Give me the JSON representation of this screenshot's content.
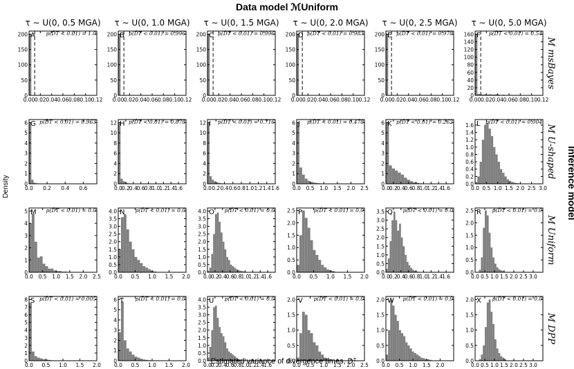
{
  "figure": {
    "title": "Data model ℳUniform",
    "x_label": "Estimated variance of divergence times, Dᵀ",
    "y_label": "Density",
    "right_label": "Inference model"
  },
  "columns": [
    "τ ∼ U(0, 0.5 MGA)",
    "τ ∼ U(0, 1.0 MGA)",
    "τ ∼ U(0, 1.5 MGA)",
    "τ ∼ U(0, 2.0 MGA)",
    "τ ∼ U(0, 2.5 MGA)",
    "τ ∼ U(0, 5.0 MGA)"
  ],
  "rows": [
    "M msBayes",
    "M U-shaped",
    "M Uniform",
    "M DPP"
  ],
  "chart_data": {
    "type": "bar",
    "bar_color": "#808080",
    "panels": [
      {
        "label": "A",
        "row": 0,
        "col": 0,
        "p": "p(D̂T < 0.01) = 1.0",
        "xlim": [
          0,
          0.12
        ],
        "ylim": [
          0,
          210
        ],
        "xticks": [
          0,
          0.02,
          0.04,
          0.06,
          0.08,
          0.1,
          0.12
        ],
        "yticks": [
          0,
          50,
          100,
          150,
          200
        ],
        "bin": 0.004,
        "values": [
          200
        ],
        "dashed_x": 0.01
      },
      {
        "label": "B",
        "row": 0,
        "col": 1,
        "p": "p(D̂T < 0.01) = 0.996",
        "xlim": [
          0,
          0.12
        ],
        "ylim": [
          0,
          210
        ],
        "xticks": [
          0,
          0.02,
          0.04,
          0.06,
          0.08,
          0.1,
          0.12
        ],
        "yticks": [
          0,
          50,
          100,
          150,
          200
        ],
        "bin": 0.004,
        "values": [
          200
        ],
        "dashed_x": 0.01
      },
      {
        "label": "C",
        "row": 0,
        "col": 2,
        "p": "p(D̂T < 0.01) = 0.996",
        "xlim": [
          0,
          0.12
        ],
        "ylim": [
          0,
          210
        ],
        "xticks": [
          0,
          0.02,
          0.04,
          0.06,
          0.08,
          0.1,
          0.12
        ],
        "yticks": [
          0,
          50,
          100,
          150,
          200
        ],
        "bin": 0.004,
        "values": [
          200
        ],
        "dashed_x": 0.01
      },
      {
        "label": "D",
        "row": 0,
        "col": 3,
        "p": "p(D̂T < 0.01) = 0.983",
        "xlim": [
          0,
          0.12
        ],
        "ylim": [
          0,
          210
        ],
        "xticks": [
          0,
          0.02,
          0.04,
          0.06,
          0.08,
          0.1,
          0.12
        ],
        "yticks": [
          0,
          50,
          100,
          150,
          200
        ],
        "bin": 0.004,
        "values": [
          200
        ],
        "dashed_x": 0.01
      },
      {
        "label": "E",
        "row": 0,
        "col": 4,
        "p": "p(D̂T < 0.01) = 0.978",
        "xlim": [
          0,
          0.12
        ],
        "ylim": [
          0,
          210
        ],
        "xticks": [
          0,
          0.02,
          0.04,
          0.06,
          0.08,
          0.1,
          0.12
        ],
        "yticks": [
          0,
          50,
          100,
          150,
          200
        ],
        "bin": 0.004,
        "values": [
          200
        ],
        "dashed_x": 0.01
      },
      {
        "label": "F",
        "row": 0,
        "col": 5,
        "p": "p(D̂T < 0.01) = 0.54",
        "xlim": [
          0,
          0.12
        ],
        "ylim": [
          0,
          168
        ],
        "xticks": [
          0,
          0.02,
          0.04,
          0.06,
          0.08,
          0.1,
          0.12
        ],
        "yticks": [
          0,
          20,
          40,
          60,
          80,
          100,
          120,
          140,
          160
        ],
        "bin": 0.004,
        "values": [
          160,
          4,
          3,
          2,
          3,
          2,
          3,
          2,
          2,
          3,
          2,
          1,
          2,
          1,
          1,
          1,
          1,
          1,
          0,
          1
        ],
        "dashed_x": 0.01
      },
      {
        "label": "G",
        "row": 1,
        "col": 0,
        "p": "p(D̂T < 0.01) = 0.963",
        "xlim": [
          0,
          0.75
        ],
        "ylim": [
          0,
          6.3
        ],
        "xticks": [
          0,
          0.2,
          0.4,
          0.6
        ],
        "yticks": [
          0,
          1,
          2,
          3,
          4,
          5,
          6
        ],
        "bin": 0.025,
        "values": [
          6.0,
          0.4,
          0.1,
          0.05
        ]
      },
      {
        "label": "H",
        "row": 1,
        "col": 1,
        "p": "p(D̂T < 0.01) = 0.878",
        "xlim": [
          0,
          1.8
        ],
        "ylim": [
          0,
          12.6
        ],
        "xticks": [
          0,
          0.2,
          0.4,
          0.6,
          0.8,
          1.0,
          1.2,
          1.4,
          1.6
        ],
        "yticks": [
          0,
          2,
          4,
          6,
          8,
          10,
          12
        ],
        "bin": 0.06,
        "values": [
          12.0,
          1.0,
          0.5,
          0.25,
          0.1,
          0.05
        ]
      },
      {
        "label": "I",
        "row": 1,
        "col": 2,
        "p": "p(D̂T < 0.01) = 0.716",
        "xlim": [
          0,
          1.6
        ],
        "ylim": [
          0,
          12.6
        ],
        "xticks": [
          0,
          0.2,
          0.4,
          0.6,
          0.8,
          1.0,
          1.2,
          1.4,
          1.6
        ],
        "yticks": [
          0,
          2,
          4,
          6,
          8,
          10,
          12
        ],
        "bin": 0.05,
        "values": [
          12.0,
          1.5,
          0.8,
          0.5,
          0.3,
          0.2,
          0.1,
          0.05
        ]
      },
      {
        "label": "J",
        "row": 1,
        "col": 3,
        "p": "p(D̂T < 0.01) = 0.478",
        "xlim": [
          0,
          2.5
        ],
        "ylim": [
          0,
          6.3
        ],
        "xticks": [
          0,
          0.5,
          1.0,
          1.5,
          2.0,
          2.5
        ],
        "yticks": [
          0,
          1,
          2,
          3,
          4,
          5,
          6
        ],
        "bin": 0.1,
        "values": [
          6.0,
          1.6,
          0.9,
          0.5,
          0.3,
          0.2,
          0.12,
          0.08,
          0.05,
          0.03
        ]
      },
      {
        "label": "K",
        "row": 1,
        "col": 4,
        "p": "p(D̂T < 0.01) = 0.262",
        "xlim": [
          0,
          1.8
        ],
        "ylim": [
          0,
          6.3
        ],
        "xticks": [
          0,
          0.2,
          0.4,
          0.6,
          0.8,
          1.0,
          1.2,
          1.4,
          1.6
        ],
        "yticks": [
          0,
          1,
          2,
          3,
          4,
          5,
          6
        ],
        "bin": 0.08,
        "values": [
          6.0,
          1.8,
          1.5,
          1.3,
          1.1,
          0.9,
          0.6,
          0.4,
          0.25,
          0.15,
          0.1,
          0.05
        ]
      },
      {
        "label": "L",
        "row": 1,
        "col": 5,
        "p": "p(D̂T < 0.01) = 0.004",
        "xlim": [
          0,
          3.0
        ],
        "ylim": [
          0,
          1.75
        ],
        "xticks": [
          0,
          0.5,
          1.0,
          1.5,
          2.0,
          2.5,
          3.0
        ],
        "yticks": [
          0,
          0.2,
          0.4,
          0.6,
          0.8,
          1.0,
          1.2,
          1.4,
          1.6
        ],
        "bin": 0.1,
        "values": [
          0.05,
          0.2,
          0.6,
          1.2,
          1.6,
          1.65,
          1.5,
          1.3,
          1.0,
          0.8,
          0.6,
          0.4,
          0.3,
          0.2,
          0.12,
          0.08,
          0.05,
          0.03,
          0.02,
          0.01
        ]
      },
      {
        "label": "M",
        "row": 2,
        "col": 0,
        "p": "p(D̂T < 0.01) = 0.0",
        "xlim": [
          0,
          2.5
        ],
        "ylim": [
          0,
          5.25
        ],
        "xticks": [
          0,
          0.5,
          1.0,
          1.5,
          2.0,
          2.5
        ],
        "yticks": [
          0,
          1,
          2,
          3,
          4,
          5
        ],
        "bin": 0.1,
        "values": [
          4.0,
          4.8,
          2.5,
          1.2,
          1.3,
          0.7,
          0.5,
          0.3,
          0.3,
          0.15,
          0.1,
          0.1,
          0.05,
          0.05
        ]
      },
      {
        "label": "N",
        "row": 2,
        "col": 1,
        "p": "p(D̂T < 0.01) = 0.0",
        "xlim": [
          0,
          2.0
        ],
        "ylim": [
          0,
          4.2
        ],
        "xticks": [
          0,
          0.5,
          1.0,
          1.5,
          2.0
        ],
        "yticks": [
          0,
          0.5,
          1.0,
          1.5,
          2.0,
          2.5,
          3.0,
          3.5,
          4.0
        ],
        "bin": 0.08,
        "values": [
          1.5,
          3.6,
          3.8,
          2.8,
          2.0,
          1.5,
          1.0,
          0.8,
          0.6,
          0.4,
          0.3,
          0.2,
          0.1,
          0.05
        ]
      },
      {
        "label": "O",
        "row": 2,
        "col": 2,
        "p": "p(D̂T < 0.01) = 0.0",
        "xlim": [
          0,
          1.8
        ],
        "ylim": [
          0,
          4.2
        ],
        "xticks": [
          0,
          0.2,
          0.4,
          0.6,
          0.8,
          1.0,
          1.2,
          1.4,
          1.6
        ],
        "yticks": [
          0,
          0.5,
          1.0,
          1.5,
          2.0,
          2.5,
          3.0,
          3.5,
          4.0
        ],
        "bin": 0.05,
        "values": [
          0.1,
          0.3,
          1.2,
          2.5,
          3.8,
          3.9,
          3.3,
          2.6,
          2.0,
          1.5,
          1.0,
          0.8,
          0.5,
          0.4,
          0.3,
          0.2,
          0.15,
          0.1,
          0.08,
          0.05
        ]
      },
      {
        "label": "P",
        "row": 2,
        "col": 3,
        "p": "p(D̂T < 0.01) = 0.0",
        "xlim": [
          0,
          2.0
        ],
        "ylim": [
          0,
          2.6
        ],
        "xticks": [
          0,
          0.5,
          1.0,
          1.5,
          2.0
        ],
        "yticks": [
          0,
          0.5,
          1.0,
          1.5,
          2.0,
          2.5
        ],
        "bin": 0.08,
        "values": [
          0.3,
          1.5,
          2.5,
          2.2,
          1.8,
          1.3,
          0.9,
          0.7,
          0.5,
          0.3,
          0.2,
          0.12,
          0.08,
          0.05
        ]
      },
      {
        "label": "Q",
        "row": 2,
        "col": 4,
        "p": "p(D̂T < 0.01) = 0.0",
        "xlim": [
          0,
          1.8
        ],
        "ylim": [
          0,
          3.7
        ],
        "xticks": [
          0,
          0.2,
          0.4,
          0.6,
          0.8,
          1.0,
          1.2,
          1.4,
          1.6
        ],
        "yticks": [
          0,
          0.5,
          1.0,
          1.5,
          2.0,
          2.5,
          3.0,
          3.5
        ],
        "bin": 0.05,
        "values": [
          0.2,
          0.8,
          1.8,
          3.0,
          3.5,
          3.0,
          2.4,
          2.8,
          2.0,
          1.5,
          1.0,
          0.6,
          0.4,
          0.25,
          0.15,
          0.08,
          0.05
        ]
      },
      {
        "label": "R",
        "row": 2,
        "col": 5,
        "p": "p(D̂T < 0.01) = 0.0",
        "xlim": [
          0,
          3.5
        ],
        "ylim": [
          0,
          2.6
        ],
        "xticks": [
          0,
          0.5,
          1.0,
          1.5,
          2.0,
          2.5,
          3.0
        ],
        "yticks": [
          0,
          0.5,
          1.0,
          1.5,
          2.0,
          2.5
        ],
        "bin": 0.1,
        "values": [
          0,
          0,
          0.1,
          0.6,
          1.8,
          2.5,
          2.3,
          1.6,
          1.0,
          0.6,
          0.35,
          0.2,
          0.12,
          0.08,
          0.05
        ]
      },
      {
        "label": "S",
        "row": 3,
        "col": 0,
        "p": "p(D̂T < 0.01) = 0.005",
        "xlim": [
          0,
          2.0
        ],
        "ylim": [
          0,
          8.4
        ],
        "xticks": [
          0,
          0.5,
          1.0,
          1.5,
          2.0
        ],
        "yticks": [
          0,
          1,
          2,
          3,
          4,
          5,
          6,
          7,
          8
        ],
        "bin": 0.08,
        "values": [
          7.6,
          1.2,
          0.6,
          0.4,
          0.3,
          0.2,
          0.15,
          0.1,
          0.05
        ]
      },
      {
        "label": "T",
        "row": 3,
        "col": 1,
        "p": "p(D̂T < 0.01) = 0.0",
        "xlim": [
          0,
          2.0
        ],
        "ylim": [
          0,
          6.3
        ],
        "xticks": [
          0,
          0.5,
          1.0,
          1.5,
          2.0
        ],
        "yticks": [
          0,
          1,
          2,
          3,
          4,
          5,
          6
        ],
        "bin": 0.08,
        "values": [
          2.8,
          5.8,
          2.0,
          1.2,
          0.9,
          0.6,
          0.4,
          0.3,
          0.2,
          0.12,
          0.08,
          0.05
        ]
      },
      {
        "label": "U",
        "row": 3,
        "col": 2,
        "p": "p(D̂T < 0.01) = 0.0",
        "xlim": [
          0,
          1.8
        ],
        "ylim": [
          0,
          4.2
        ],
        "xticks": [
          0,
          0.2,
          0.4,
          0.6,
          0.8,
          1.0,
          1.2,
          1.4,
          1.6
        ],
        "yticks": [
          0,
          0.5,
          1.0,
          1.5,
          2.0,
          2.5,
          3.0,
          3.5,
          4.0
        ],
        "bin": 0.05,
        "values": [
          0.2,
          0.9,
          2.0,
          3.5,
          3.6,
          2.8,
          2.2,
          1.8,
          1.6,
          1.2,
          0.8,
          0.6,
          0.5,
          0.4,
          0.3,
          0.2,
          0.1,
          0.08
        ]
      },
      {
        "label": "V",
        "row": 3,
        "col": 3,
        "p": "p(D̂T < 0.01) = 0.0",
        "xlim": [
          0,
          2.5
        ],
        "ylim": [
          0,
          2.1
        ],
        "xticks": [
          0,
          0.5,
          1.0,
          1.5,
          2.0,
          2.5
        ],
        "yticks": [
          0,
          0.5,
          1.0,
          1.5,
          2.0
        ],
        "bin": 0.1,
        "values": [
          0.1,
          0.9,
          1.6,
          1.5,
          1.0,
          0.9,
          0.6,
          0.5,
          0.3,
          0.2,
          0.1,
          0.08,
          0.05
        ]
      },
      {
        "label": "W",
        "row": 3,
        "col": 4,
        "p": "p(D̂T < 0.01) = 0.0",
        "xlim": [
          0,
          2.5
        ],
        "ylim": [
          0,
          2.1
        ],
        "xticks": [
          0,
          0.5,
          1.0,
          1.5,
          2.0
        ],
        "yticks": [
          0,
          0.5,
          1.0,
          1.5,
          2.0
        ],
        "bin": 0.08,
        "values": [
          0.2,
          1.0,
          2.0,
          1.8,
          1.5,
          1.3,
          1.0,
          0.9,
          0.8,
          0.6,
          0.5,
          0.4,
          0.3,
          0.25,
          0.2,
          0.15,
          0.1,
          0.08,
          0.05,
          0.05,
          0.03
        ]
      },
      {
        "label": "X",
        "row": 3,
        "col": 5,
        "p": "p(D̂T < 0.01) = 0.0",
        "xlim": [
          0,
          3.5
        ],
        "ylim": [
          0,
          2.1
        ],
        "xticks": [
          0,
          0.5,
          1.0,
          1.5,
          2.0,
          2.5,
          3.0
        ],
        "yticks": [
          0,
          0.5,
          1.0,
          1.5,
          2.0
        ],
        "bin": 0.1,
        "values": [
          0,
          0,
          0.05,
          0.2,
          0.5,
          1.1,
          1.9,
          2.0,
          1.6,
          1.2,
          0.7,
          0.4,
          0.25,
          0.15,
          0.1,
          0.05
        ]
      }
    ]
  }
}
